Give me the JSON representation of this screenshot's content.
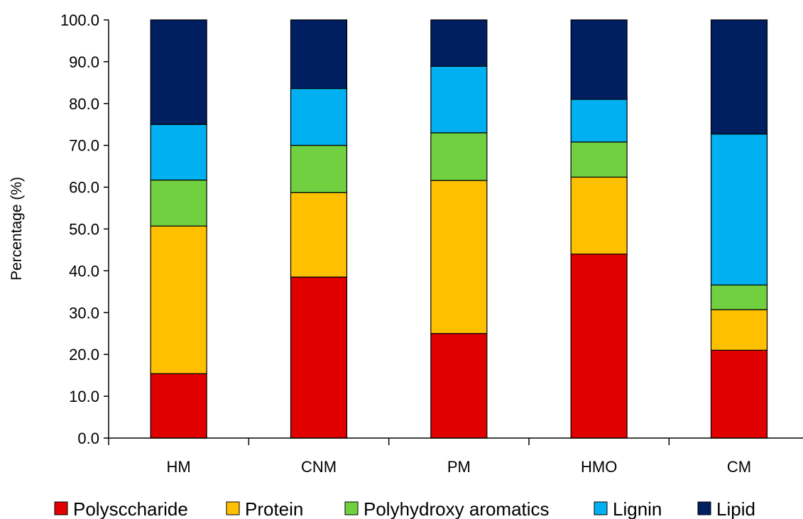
{
  "chart_data": {
    "type": "bar",
    "stacked": true,
    "ylabel": "Percentage (%)",
    "xlabel": "",
    "ylim": [
      0,
      100
    ],
    "yticks": [
      "0.0",
      "10.0",
      "20.0",
      "30.0",
      "40.0",
      "50.0",
      "60.0",
      "70.0",
      "80.0",
      "90.0",
      "100.0"
    ],
    "categories": [
      "HM",
      "CNM",
      "PM",
      "HMO",
      "CM"
    ],
    "series": [
      {
        "name": "Polysccharide",
        "color": "#e00000",
        "values": [
          15.4,
          38.5,
          25.0,
          44.0,
          21.0
        ]
      },
      {
        "name": "Protein",
        "color": "#ffc000",
        "values": [
          35.3,
          20.2,
          36.6,
          18.4,
          9.7
        ]
      },
      {
        "name": "Polyhydroxy aromatics",
        "color": "#70d040",
        "values": [
          11.0,
          11.3,
          11.4,
          8.4,
          5.9
        ]
      },
      {
        "name": "Lignin",
        "color": "#00b0f0",
        "values": [
          13.3,
          13.6,
          15.9,
          10.2,
          36.1
        ]
      },
      {
        "name": "Lipid",
        "color": "#001f60",
        "values": [
          25.0,
          16.4,
          11.1,
          19.0,
          27.3
        ]
      }
    ],
    "legend_position": "bottom",
    "grid": false
  }
}
